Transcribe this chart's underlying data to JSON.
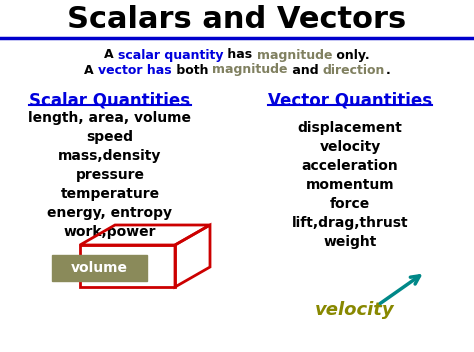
{
  "title": "Scalars and Vectors",
  "bg_color": "#ffffff",
  "line_color": "#0000cc",
  "heading_color": "#0000dd",
  "magnitude_color": "#808060",
  "scalar_heading": "Scalar Quantities",
  "vector_heading": "Vector Quantities",
  "scalar_items": "length, area, volume\nspeed\nmass,density\npressure\ntemperature\nenergy, entropy\nwork,power",
  "vector_items": "displacement\nvelocity\nacceleration\nmomentum\nforce\nlift,drag,thrust\nweight",
  "volume_box_color": "#8a8a5a",
  "volume_text_color": "#ffffff",
  "box3d_color": "#cc0000",
  "velocity_color": "#888800",
  "arrow_color": "#008888"
}
